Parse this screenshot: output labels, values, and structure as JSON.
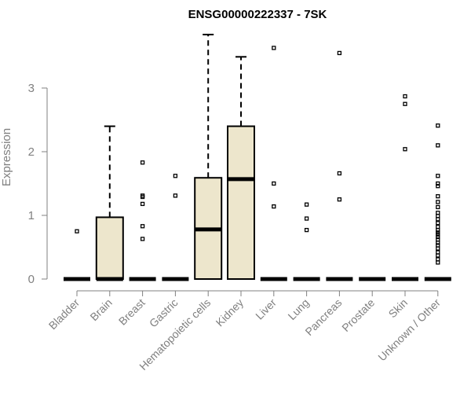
{
  "chart_data": {
    "type": "boxplot",
    "title": "ENSG00000222337 - 7SK",
    "xlabel": "",
    "ylabel": "Expression",
    "ylim": [
      0,
      3.85
    ],
    "yticks": [
      0,
      1,
      2,
      3
    ],
    "grid": false,
    "colors": {
      "box_fill": "#ede6cc",
      "stroke": "#000000",
      "axis": "#808080",
      "text": "#808080"
    },
    "categories": [
      "Bladder",
      "Brain",
      "Breast",
      "Gastric",
      "Hematopoietic cells",
      "Kidney",
      "Liver",
      "Lung",
      "Pancreas",
      "Prostate",
      "Skin",
      "Unknown / Other"
    ],
    "boxes": [
      {
        "category": "Bladder",
        "q1": 0,
        "median": 0,
        "q3": 0,
        "whisker_low": 0,
        "whisker_high": 0,
        "outliers": [
          0.75
        ]
      },
      {
        "category": "Brain",
        "q1": 0,
        "median": 0,
        "q3": 0.97,
        "whisker_low": 0,
        "whisker_high": 2.4,
        "outliers": []
      },
      {
        "category": "Breast",
        "q1": 0,
        "median": 0,
        "q3": 0,
        "whisker_low": 0,
        "whisker_high": 0,
        "outliers": [
          1.83,
          1.31,
          1.29,
          1.18,
          0.83,
          0.63
        ]
      },
      {
        "category": "Gastric",
        "q1": 0,
        "median": 0,
        "q3": 0,
        "whisker_low": 0,
        "whisker_high": 0,
        "outliers": [
          1.62,
          1.31
        ]
      },
      {
        "category": "Hematopoietic cells",
        "q1": 0,
        "median": 0.78,
        "q3": 1.59,
        "whisker_low": 0,
        "whisker_high": 3.84,
        "outliers": []
      },
      {
        "category": "Kidney",
        "q1": 0,
        "median": 1.57,
        "q3": 2.4,
        "whisker_low": 0,
        "whisker_high": 3.49,
        "outliers": []
      },
      {
        "category": "Liver",
        "q1": 0,
        "median": 0,
        "q3": 0,
        "whisker_low": 0,
        "whisker_high": 0,
        "outliers": [
          3.63,
          1.5,
          1.14
        ]
      },
      {
        "category": "Lung",
        "q1": 0,
        "median": 0,
        "q3": 0,
        "whisker_low": 0,
        "whisker_high": 0,
        "outliers": [
          1.17,
          0.95,
          0.77
        ]
      },
      {
        "category": "Pancreas",
        "q1": 0,
        "median": 0,
        "q3": 0,
        "whisker_low": 0,
        "whisker_high": 0,
        "outliers": [
          3.55,
          1.66,
          1.25
        ]
      },
      {
        "category": "Prostate",
        "q1": 0,
        "median": 0,
        "q3": 0,
        "whisker_low": 0,
        "whisker_high": 0,
        "outliers": []
      },
      {
        "category": "Skin",
        "q1": 0,
        "median": 0,
        "q3": 0,
        "whisker_low": 0,
        "whisker_high": 0,
        "outliers": [
          2.87,
          2.75,
          2.04
        ]
      },
      {
        "category": "Unknown / Other",
        "q1": 0,
        "median": 0,
        "q3": 0,
        "whisker_low": 0,
        "whisker_high": 0,
        "outliers": [
          2.41,
          2.1,
          1.62,
          1.5,
          1.46,
          1.3,
          1.21,
          1.13,
          1.04,
          0.99,
          0.94,
          0.88,
          0.82,
          0.77,
          0.73,
          0.7,
          0.66,
          0.62,
          0.57,
          0.53,
          0.48,
          0.42,
          0.37,
          0.31,
          0.26
        ]
      }
    ]
  }
}
